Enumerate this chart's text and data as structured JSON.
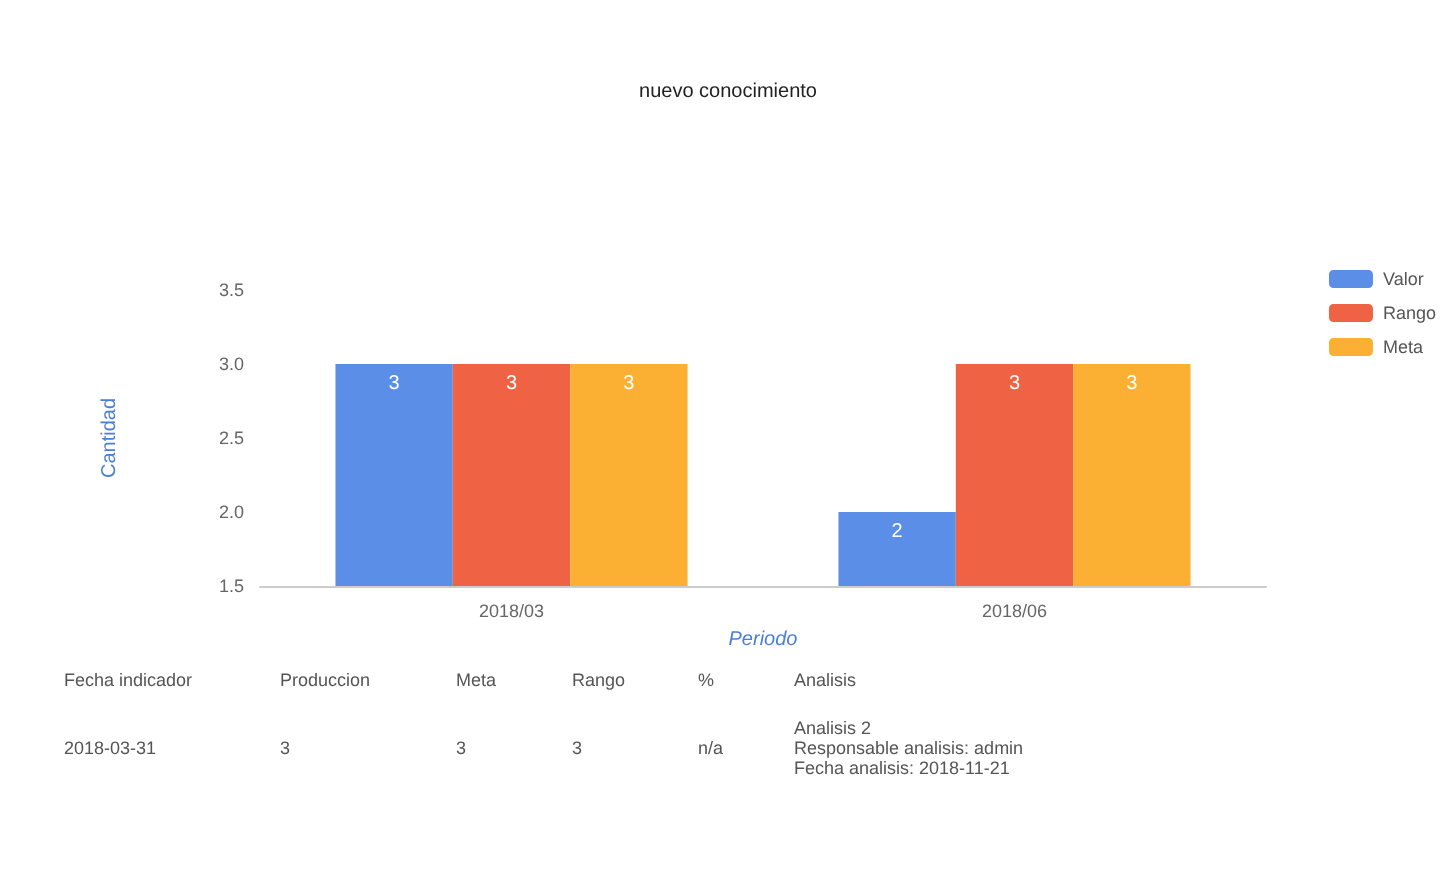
{
  "chart_data": {
    "type": "bar",
    "title": "nuevo conocimiento",
    "xlabel": "Periodo",
    "ylabel": "Cantidad",
    "categories": [
      "2018/03",
      "2018/06"
    ],
    "series": [
      {
        "name": "Valor",
        "color": "#5b8ee6",
        "values": [
          3,
          2
        ]
      },
      {
        "name": "Rango",
        "color": "#ef6344",
        "values": [
          3,
          3
        ]
      },
      {
        "name": "Meta",
        "color": "#fbb034",
        "values": [
          3,
          3
        ]
      }
    ],
    "ylim": [
      1.5,
      3.5
    ],
    "yticks": [
      1.5,
      {
        "value": 2,
        "label": "2.0"
      },
      2.5,
      {
        "value": 3,
        "label": "3.0"
      },
      3.5
    ],
    "data_labels": true,
    "legend": "right",
    "grid": false,
    "annotations": [
      "Fecha indicador",
      "Produccion",
      "Meta",
      "Rango",
      "%",
      "Analisis",
      "2018-03-31",
      "3",
      "3",
      "3",
      "n/a",
      "Analisis 2\nResponsable analisis: admin\nFecha analisis: 2018-11-21"
    ]
  }
}
